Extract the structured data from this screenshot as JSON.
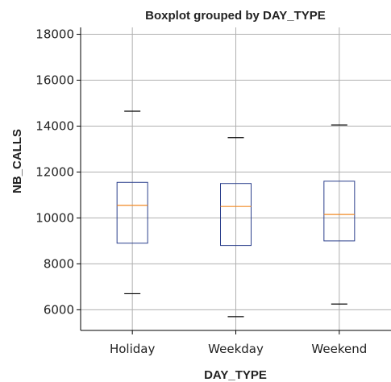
{
  "chart_data": {
    "type": "box",
    "title": "Boxplot grouped by DAY_TYPE",
    "xlabel": "DAY_TYPE",
    "ylabel": "NB_CALLS",
    "categories": [
      "Holiday",
      "Weekday",
      "Weekend"
    ],
    "ylim": [
      5100,
      18300
    ],
    "yticks": [
      6000,
      8000,
      10000,
      12000,
      14000,
      16000,
      18000
    ],
    "grid": true,
    "boxes": [
      {
        "category": "Holiday",
        "whislo": 6700,
        "q1": 8900,
        "med": 10550,
        "q3": 11550,
        "whishi": 14650
      },
      {
        "category": "Weekday",
        "whislo": 5700,
        "q1": 8800,
        "med": 10500,
        "q3": 11500,
        "whishi": 13500
      },
      {
        "category": "Weekend",
        "whislo": 6250,
        "q1": 9000,
        "med": 10150,
        "q3": 11600,
        "whishi": 14050
      }
    ],
    "colors": {
      "box": "#2b3f8c",
      "median": "#f08a24",
      "whisker_cap": "#000000",
      "grid": "#b0b0b0"
    }
  }
}
